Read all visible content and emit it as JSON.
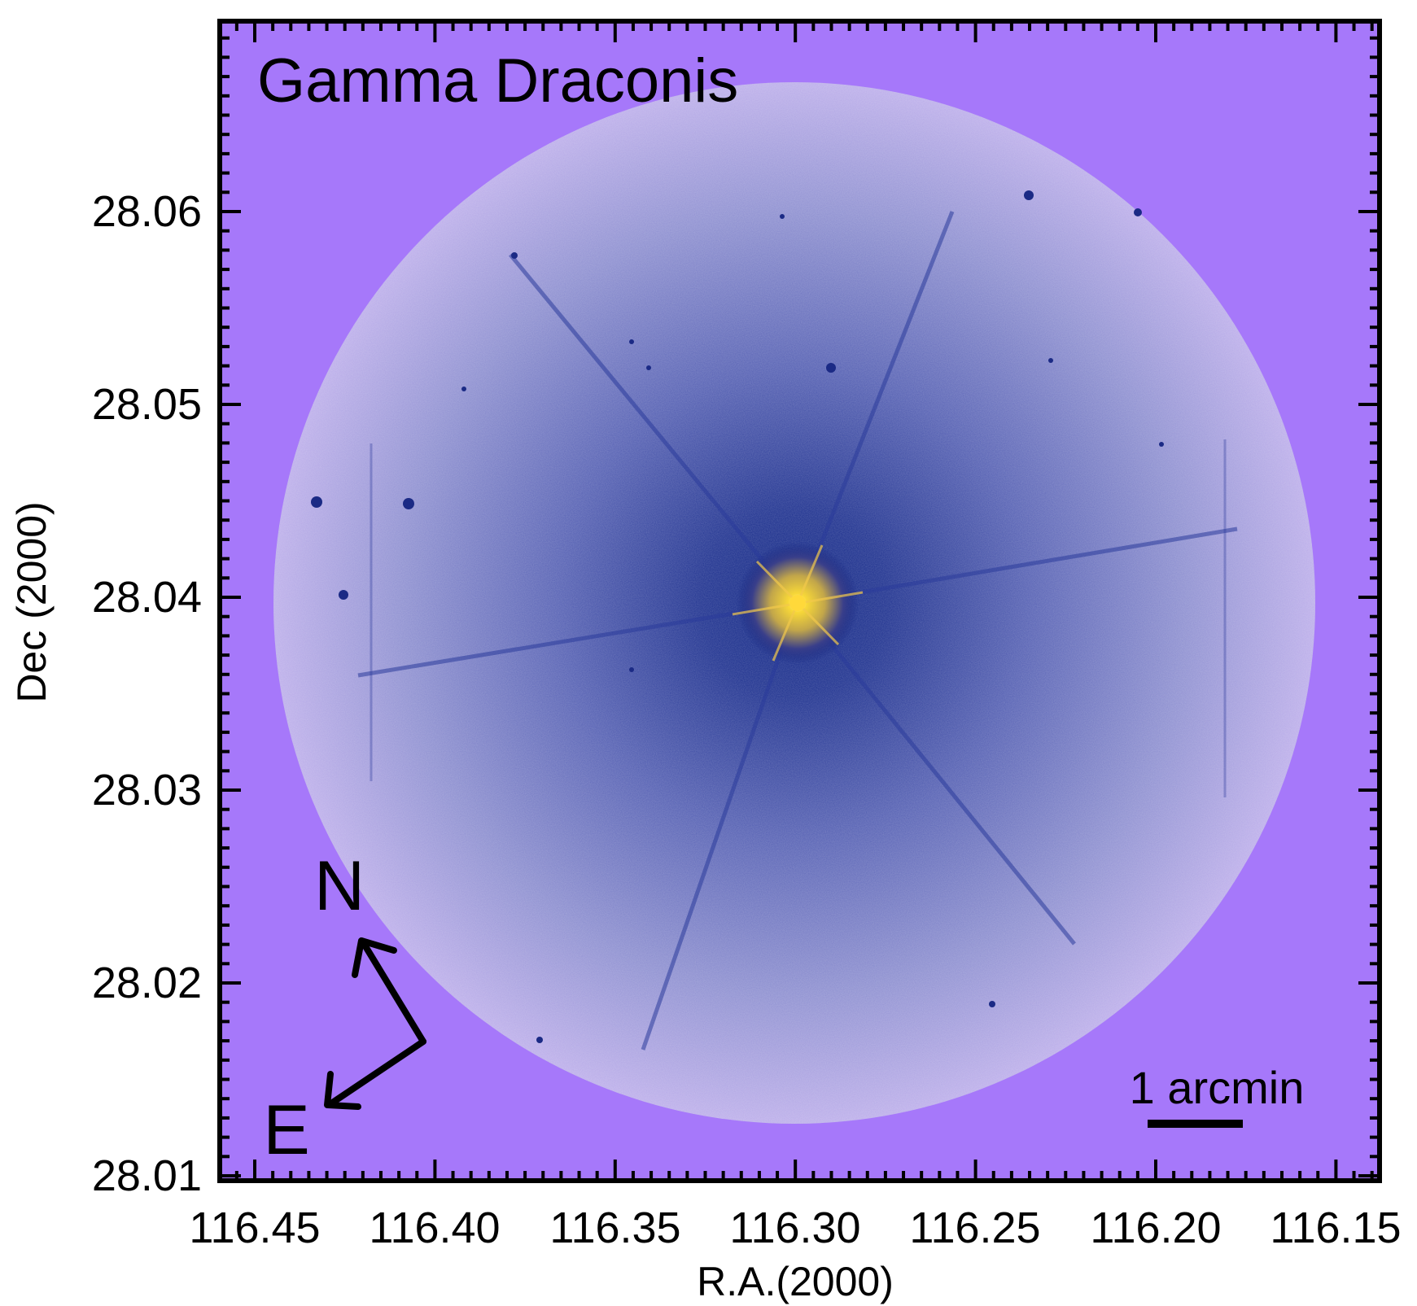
{
  "title": "Gamma Draconis",
  "x_axis": {
    "label": "R.A.(2000)",
    "ticks": [
      "116.45",
      "116.40",
      "116.35",
      "116.30",
      "116.25",
      "116.20",
      "116.15"
    ]
  },
  "y_axis": {
    "label": "Dec (2000)",
    "ticks": [
      "28.06",
      "28.05",
      "28.04",
      "28.03",
      "28.02",
      "28.01"
    ]
  },
  "compass": {
    "north": "N",
    "east": "E"
  },
  "scale_bar": {
    "label": "1 arcmin"
  },
  "colors": {
    "background": "#a678fa",
    "sky_outer": "#b7a7ea",
    "sky_mid": "#6b6fbd",
    "sky_inner": "#1f2f8e",
    "star_core": "#f6d640",
    "ink": "#000000"
  }
}
